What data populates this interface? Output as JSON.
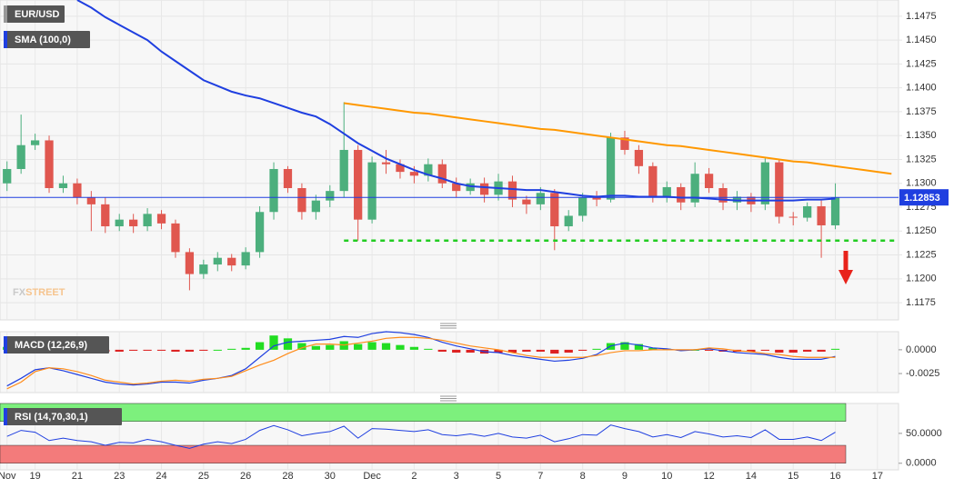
{
  "chart_data": [
    {
      "type": "candlestick",
      "title": "EUR/USD",
      "open": [
        1.13,
        1.1315,
        1.134,
        1.1345,
        1.1295,
        1.13,
        1.1285,
        1.1278,
        1.1255,
        1.1262,
        1.1255,
        1.1268,
        1.1258,
        1.1228,
        1.1205,
        1.1215,
        1.1222,
        1.1214,
        1.1228,
        1.127,
        1.1315,
        1.1295,
        1.127,
        1.1282,
        1.1292,
        1.1335,
        1.1262,
        1.1322,
        1.132,
        1.1312,
        1.1308,
        1.132,
        1.13,
        1.1292,
        1.13,
        1.1288,
        1.1302,
        1.1283,
        1.1278,
        1.129,
        1.1255,
        1.1266,
        1.1285,
        1.1283,
        1.1348,
        1.1335,
        1.1318,
        1.1285,
        1.1296,
        1.128,
        1.131,
        1.1295,
        1.128,
        1.1286,
        1.1278,
        1.1322,
        1.1265,
        1.1264,
        1.1276,
        1.1256,
        null,
        null,
        null,
        null
      ],
      "high": [
        1.1323,
        1.1372,
        1.1352,
        1.135,
        1.1308,
        1.1305,
        1.1292,
        1.1285,
        1.1268,
        1.1268,
        1.1274,
        1.1272,
        1.1262,
        1.1232,
        1.122,
        1.1228,
        1.1226,
        1.1233,
        1.1276,
        1.1322,
        1.1318,
        1.13,
        1.1288,
        1.1298,
        1.1385,
        1.134,
        1.1328,
        1.1335,
        1.1325,
        1.1318,
        1.1326,
        1.1325,
        1.1306,
        1.1305,
        1.1306,
        1.131,
        1.1308,
        1.1287,
        1.1296,
        1.1294,
        1.1272,
        1.129,
        1.1292,
        1.1353,
        1.1355,
        1.134,
        1.1322,
        1.1302,
        1.13,
        1.1322,
        1.1316,
        1.13,
        1.1292,
        1.129,
        1.1326,
        1.1325,
        1.127,
        1.128,
        1.1282,
        1.13,
        null,
        null,
        null,
        null
      ],
      "low": [
        1.1292,
        1.131,
        1.1335,
        1.129,
        1.129,
        1.1278,
        1.125,
        1.1248,
        1.125,
        1.1248,
        1.125,
        1.1252,
        1.1222,
        1.1188,
        1.12,
        1.1208,
        1.1208,
        1.121,
        1.1222,
        1.1262,
        1.129,
        1.1262,
        1.1262,
        1.1275,
        1.1285,
        1.124,
        1.1258,
        1.131,
        1.1305,
        1.13,
        1.1302,
        1.1295,
        1.1285,
        1.1288,
        1.128,
        1.1282,
        1.1275,
        1.1268,
        1.1272,
        1.123,
        1.125,
        1.126,
        1.1276,
        1.128,
        1.133,
        1.131,
        1.128,
        1.128,
        1.1272,
        1.1275,
        1.129,
        1.1272,
        1.1272,
        1.127,
        1.1272,
        1.1258,
        1.1256,
        1.126,
        1.1222,
        1.1252,
        null,
        null,
        null,
        null
      ],
      "close": [
        1.1315,
        1.134,
        1.1345,
        1.1295,
        1.13,
        1.1285,
        1.1278,
        1.1255,
        1.1262,
        1.1255,
        1.1268,
        1.1258,
        1.1228,
        1.1205,
        1.1215,
        1.1222,
        1.1214,
        1.1228,
        1.127,
        1.1315,
        1.1295,
        1.127,
        1.1282,
        1.1292,
        1.1335,
        1.1262,
        1.1322,
        1.132,
        1.1312,
        1.1308,
        1.132,
        1.13,
        1.1292,
        1.13,
        1.1288,
        1.1302,
        1.1283,
        1.1278,
        1.129,
        1.1255,
        1.1266,
        1.1285,
        1.1283,
        1.1348,
        1.1335,
        1.1318,
        1.1285,
        1.1296,
        1.128,
        1.131,
        1.1295,
        1.128,
        1.1286,
        1.1278,
        1.1322,
        1.1265,
        1.1264,
        1.1276,
        1.1256,
        1.12853,
        null,
        null,
        null,
        null
      ],
      "up_color": "#4caf7d",
      "down_color": "#e0574f",
      "series": [
        {
          "name": "SMA (100,0)",
          "color": "#1f3fe0",
          "values": [
            null,
            null,
            null,
            null,
            null,
            1.1492,
            1.1484,
            1.1474,
            1.1466,
            1.1458,
            1.145,
            1.1438,
            1.1428,
            1.1418,
            1.1408,
            1.1402,
            1.1396,
            1.1392,
            1.1389,
            1.1384,
            1.1379,
            1.1374,
            1.137,
            1.1362,
            1.1352,
            1.1342,
            1.1334,
            1.1326,
            1.132,
            1.1314,
            1.1309,
            1.1305,
            1.13,
            1.1297,
            1.1296,
            1.1295,
            1.1294,
            1.1293,
            1.1293,
            1.1291,
            1.1289,
            1.1287,
            1.1286,
            1.1287,
            1.1287,
            1.1286,
            1.1286,
            1.1286,
            1.1285,
            1.1285,
            1.1284,
            1.1283,
            1.1282,
            1.1282,
            1.1282,
            1.1282,
            1.1282,
            1.1283,
            1.1283,
            1.1284,
            null,
            null,
            null,
            null
          ]
        }
      ],
      "trendline": {
        "color": "#ff9800",
        "values": [
          null,
          null,
          null,
          null,
          null,
          null,
          null,
          null,
          null,
          null,
          null,
          null,
          null,
          null,
          null,
          null,
          null,
          null,
          null,
          null,
          null,
          null,
          null,
          null,
          1.1384,
          1.1382,
          1.138,
          1.1378,
          1.1376,
          1.1374,
          1.1373,
          1.1371,
          1.1369,
          1.1367,
          1.1365,
          1.1363,
          1.1361,
          1.1359,
          1.1357,
          1.1356,
          1.1354,
          1.1352,
          1.135,
          1.1348,
          1.1346,
          1.1344,
          1.1342,
          1.134,
          1.1339,
          1.1337,
          1.1335,
          1.1333,
          1.1331,
          1.1329,
          1.1327,
          1.1325,
          1.1323,
          1.1322,
          1.132,
          1.1318,
          1.1316,
          1.1314,
          1.1312,
          1.131
        ]
      },
      "support": {
        "value": 1.124,
        "color": "#22cc22"
      },
      "last_price": {
        "value": 1.12853,
        "color": "#1f3fe0"
      },
      "watermark": [
        "FX",
        "STREET"
      ],
      "ylim": [
        1.1157,
        1.1492
      ],
      "yticks": [
        1.1175,
        {
          "value": 1.12,
          "label": "1.1200"
        },
        1.1225,
        {
          "value": 1.125,
          "label": "1.1250"
        },
        1.1275,
        {
          "value": 1.13,
          "label": "1.1300"
        },
        1.1325,
        {
          "value": 1.135,
          "label": "1.1350"
        },
        1.1375,
        {
          "value": 1.14,
          "label": "1.1400"
        },
        1.1425,
        {
          "value": 1.145,
          "label": "1.1450"
        },
        1.1475
      ],
      "grid": true
    },
    {
      "type": "macd",
      "title": "MACD (12,26,9)",
      "histogram": {
        "up_color": "#22dd22",
        "down_color": "#dd2222",
        "values": [
          0.0003,
          0.0004,
          0.0002,
          0.0,
          -0.0002,
          -0.0003,
          -0.0003,
          -0.0002,
          -0.0002,
          -0.0001,
          -0.0001,
          -0.0001,
          -0.0002,
          -0.0002,
          -0.0001,
          0.0,
          0.0001,
          0.0002,
          0.0008,
          0.0015,
          0.0012,
          0.0007,
          0.0004,
          0.0005,
          0.0009,
          0.0006,
          0.0008,
          0.0007,
          0.0005,
          0.0003,
          0.0001,
          -0.0002,
          -0.0003,
          -0.0003,
          -0.0004,
          -0.0003,
          -0.0003,
          -0.0002,
          -0.0002,
          -0.0004,
          -0.0003,
          -0.0001,
          0.0001,
          0.0007,
          0.0008,
          0.0006,
          0.0002,
          0.0001,
          -0.0001,
          0.0,
          -0.0001,
          -0.0002,
          -0.0002,
          -0.0002,
          -0.0001,
          -0.0003,
          -0.0003,
          -0.0002,
          -0.0002,
          0.0001,
          null,
          null,
          null,
          null
        ]
      },
      "series": [
        {
          "color": "#1f3fe0",
          "values": [
            -0.0038,
            -0.003,
            -0.0021,
            -0.0019,
            -0.0022,
            -0.0026,
            -0.003,
            -0.0034,
            -0.0036,
            -0.0037,
            -0.0036,
            -0.0034,
            -0.0034,
            -0.0035,
            -0.0032,
            -0.003,
            -0.0027,
            -0.002,
            -0.0008,
            0.0004,
            0.0008,
            0.0009,
            0.001,
            0.0011,
            0.0014,
            0.0013,
            0.0017,
            0.0019,
            0.0018,
            0.0016,
            0.0013,
            0.0008,
            0.0004,
            0.0001,
            -0.0002,
            -0.0003,
            -0.0006,
            -0.0008,
            -0.001,
            -0.0012,
            -0.0011,
            -0.0009,
            -0.0005,
            0.0004,
            0.0007,
            0.0005,
            0.0002,
            0.0001,
            -0.0001,
            0.0,
            0.0001,
            -0.0001,
            -0.0003,
            -0.0004,
            -0.0005,
            -0.0008,
            -0.001,
            -0.001,
            -0.001,
            -0.0007,
            null,
            null,
            null,
            null
          ]
        },
        {
          "color": "#ff8c1a",
          "values": [
            -0.0041,
            -0.0034,
            -0.0023,
            -0.0019,
            -0.002,
            -0.0023,
            -0.0027,
            -0.0032,
            -0.0034,
            -0.0036,
            -0.0035,
            -0.0033,
            -0.0032,
            -0.0033,
            -0.0031,
            -0.003,
            -0.0028,
            -0.0022,
            -0.0016,
            -0.0011,
            -0.0004,
            0.0002,
            0.0006,
            0.0006,
            0.0005,
            0.0007,
            0.0009,
            0.0012,
            0.0013,
            0.0013,
            0.0012,
            0.001,
            0.0007,
            0.0004,
            0.0002,
            0.0,
            -0.0003,
            -0.0006,
            -0.0008,
            -0.0008,
            -0.0008,
            -0.0008,
            -0.0006,
            -0.0003,
            -0.0001,
            -0.0001,
            0.0,
            0.0,
            0.0,
            0.0,
            0.0002,
            0.0001,
            -0.0001,
            -0.0002,
            -0.0004,
            -0.0005,
            -0.0007,
            -0.0008,
            -0.0008,
            -0.0008,
            null,
            null,
            null,
            null
          ]
        }
      ],
      "ylim": [
        -0.0045,
        0.0019
      ],
      "yticks": [
        {
          "value": -0.0025,
          "label": "-0.0025"
        },
        {
          "value": 0,
          "label": "0.0000"
        }
      ]
    },
    {
      "type": "line",
      "title": "RSI (14,70,30,1)",
      "categories": [
        "Nov",
        null,
        "19",
        null,
        null,
        "21",
        null,
        null,
        "23",
        null,
        null,
        "24",
        null,
        null,
        "25",
        null,
        null,
        "26",
        null,
        null,
        "28",
        null,
        null,
        "30",
        null,
        null,
        "Dec",
        null,
        null,
        "2",
        null,
        null,
        "3",
        null,
        null,
        "5",
        null,
        null,
        "7",
        null,
        null,
        "8",
        null,
        null,
        "9",
        null,
        null,
        "10",
        null,
        null,
        "12",
        null,
        null,
        "14",
        null,
        null,
        "15",
        null,
        null,
        "16",
        null,
        null,
        "17",
        null
      ],
      "overbought": 70,
      "oversold": 30,
      "overbought_color": "#7df07d",
      "oversold_color": "#f37b7b",
      "series": [
        {
          "color": "#1f3fe0",
          "values": [
            45,
            55,
            52,
            38,
            42,
            38,
            36,
            30,
            35,
            34,
            40,
            36,
            30,
            25,
            32,
            36,
            33,
            40,
            55,
            63,
            56,
            46,
            50,
            53,
            62,
            42,
            58,
            57,
            55,
            53,
            56,
            48,
            46,
            49,
            45,
            50,
            44,
            42,
            47,
            36,
            41,
            48,
            47,
            64,
            58,
            53,
            44,
            48,
            43,
            53,
            49,
            44,
            46,
            43,
            56,
            40,
            40,
            44,
            38,
            52,
            null,
            null,
            null,
            null
          ]
        }
      ],
      "ylim": [
        -11,
        100
      ],
      "yticks": [
        {
          "value": 0,
          "label": "0.0000"
        },
        {
          "value": 50,
          "label": "50.0000"
        }
      ]
    }
  ]
}
